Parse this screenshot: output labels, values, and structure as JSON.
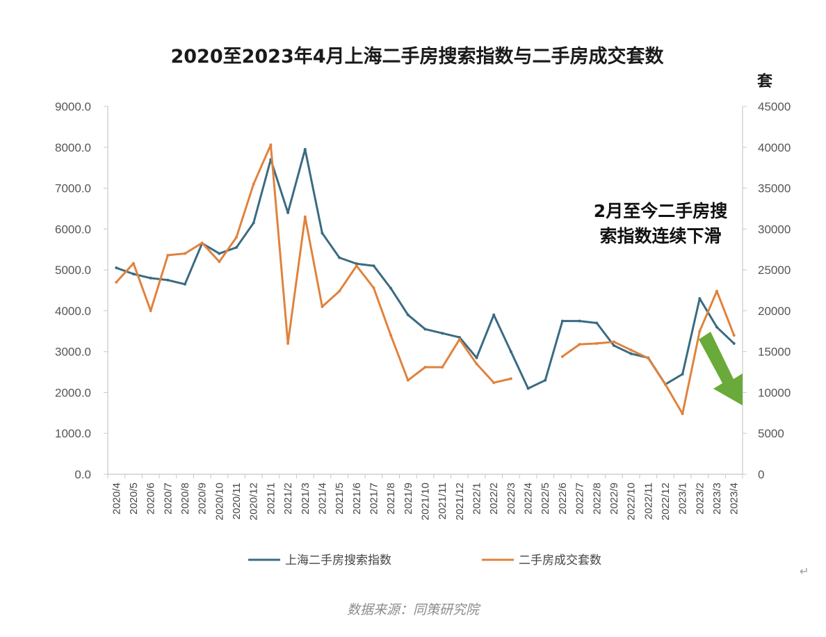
{
  "chart_data": {
    "type": "line",
    "title": "2020至2023年4月上海二手房搜索指数与二手房成交套数",
    "right_axis_unit": "套",
    "categories": [
      "2020/4",
      "2020/5",
      "2020/6",
      "2020/7",
      "2020/8",
      "2020/9",
      "2020/10",
      "2020/11",
      "2020/12",
      "2021/1",
      "2021/2",
      "2021/3",
      "2021/4",
      "2021/5",
      "2021/6",
      "2021/7",
      "2021/8",
      "2021/9",
      "2021/10",
      "2021/11",
      "2021/12",
      "2022/1",
      "2022/2",
      "2022/3",
      "2022/4",
      "2022/5",
      "2022/6",
      "2022/7",
      "2022/8",
      "2022/9",
      "2022/10",
      "2022/11",
      "2022/12",
      "2023/1",
      "2023/2",
      "2023/3",
      "2023/4"
    ],
    "left_axis": {
      "ylim": [
        0,
        9000
      ],
      "ticks": [
        "0.0",
        "1000.0",
        "2000.0",
        "3000.0",
        "4000.0",
        "5000.0",
        "6000.0",
        "7000.0",
        "8000.0",
        "9000.0"
      ]
    },
    "right_axis": {
      "ylim": [
        0,
        45000
      ],
      "ticks": [
        "0",
        "5000",
        "10000",
        "15000",
        "20000",
        "25000",
        "30000",
        "35000",
        "40000",
        "45000"
      ]
    },
    "series": [
      {
        "name": "上海二手房搜索指数",
        "axis": "left",
        "color": "#3a6b82",
        "values": [
          5050,
          4900,
          4800,
          4750,
          4650,
          5650,
          5400,
          5550,
          6150,
          7700,
          6400,
          7950,
          5900,
          5300,
          5150,
          5100,
          4550,
          3900,
          3550,
          3450,
          3350,
          2850,
          3900,
          3000,
          2100,
          2300,
          3750,
          3750,
          3700,
          3150,
          2950,
          2850,
          2200,
          2450,
          4300,
          3600,
          3200
        ]
      },
      {
        "name": "二手房成交套数",
        "axis": "right",
        "color": "#e0823d",
        "values": [
          23500,
          25800,
          20000,
          26800,
          27000,
          28300,
          26000,
          29000,
          35500,
          40300,
          16000,
          31500,
          20500,
          22400,
          25500,
          22800,
          17000,
          11500,
          13100,
          13100,
          16500,
          13500,
          11200,
          11700,
          null,
          null,
          14400,
          15900,
          16000,
          16200,
          15200,
          14200,
          11000,
          7400,
          17500,
          22400,
          17000
        ]
      }
    ],
    "annotation": [
      "2月至今二手房搜",
      "索指数连续下滑"
    ],
    "arrow_color": "#6aaa3a",
    "legend_position": "bottom"
  },
  "footer": {
    "source": "数据来源：同策研究院"
  },
  "extra": {
    "return_mark": "↵"
  }
}
